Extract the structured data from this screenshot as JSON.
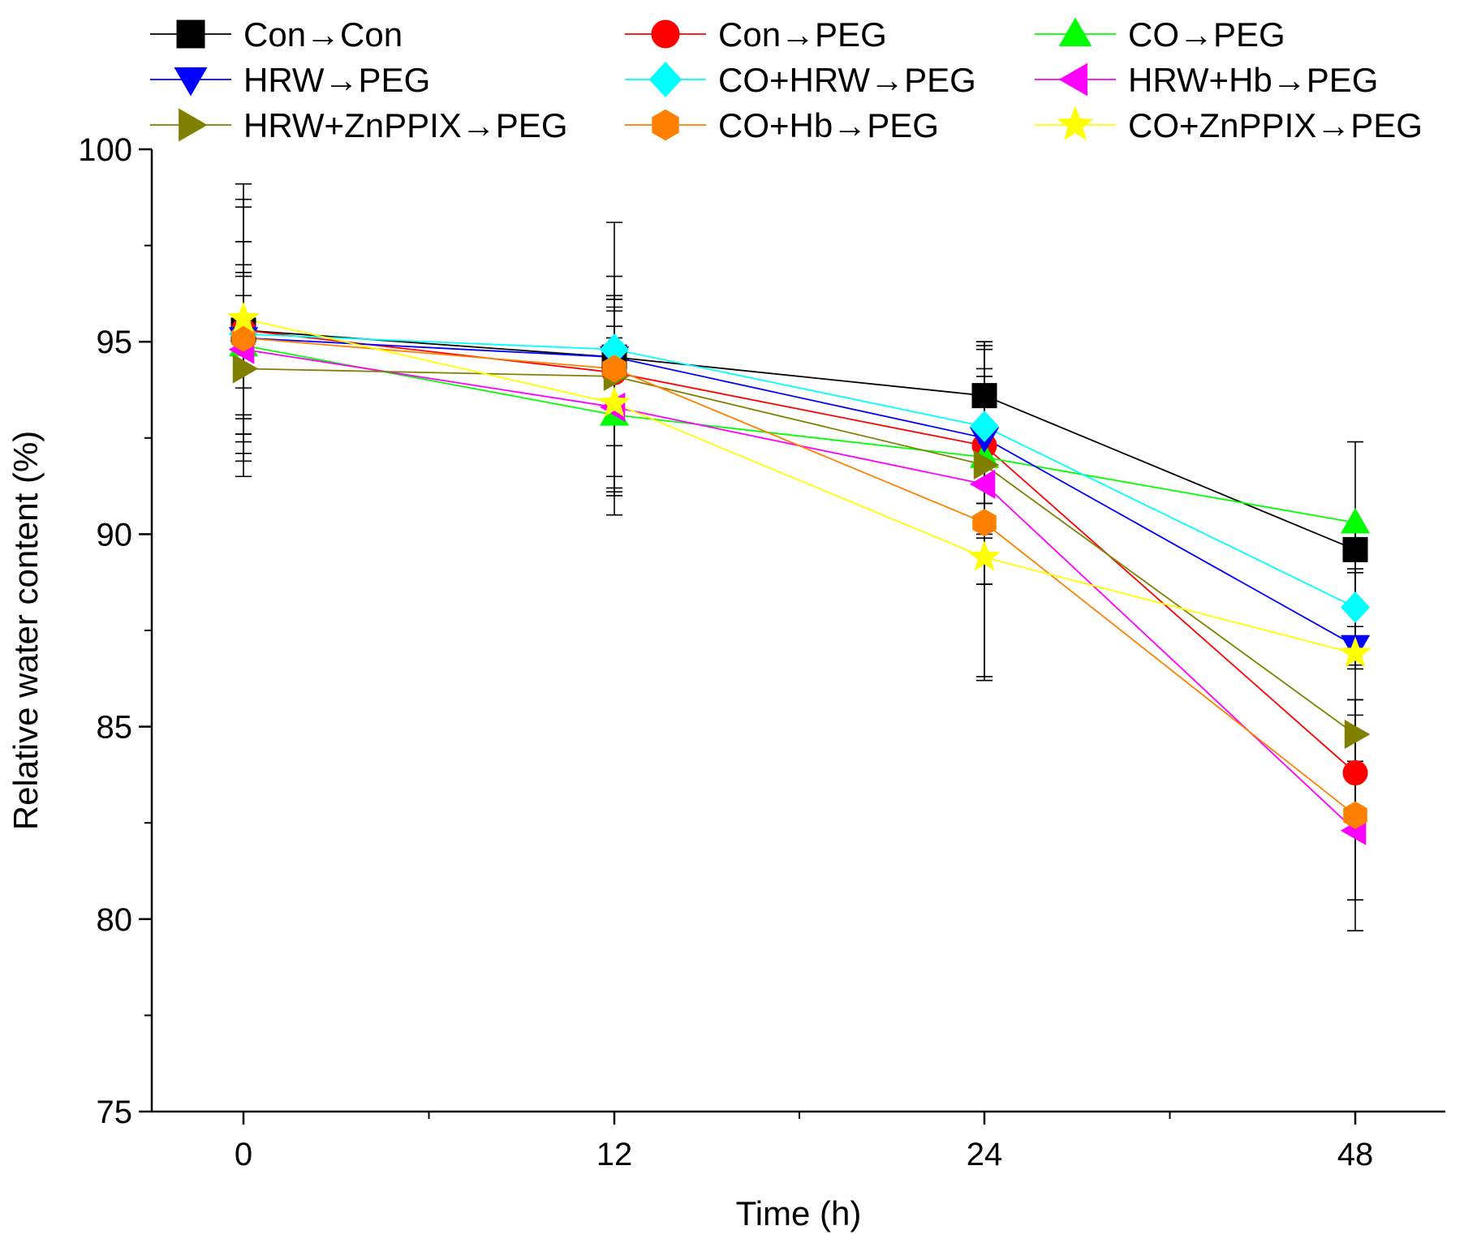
{
  "chart_data": {
    "type": "line",
    "title": "",
    "xlabel": "Time (h)",
    "ylabel": "Relative water content (%)",
    "x_categories": [
      "0",
      "12",
      "24",
      "48"
    ],
    "ylim": [
      75,
      100
    ],
    "y_ticks": [
      "75",
      "80",
      "85",
      "90",
      "95",
      "100"
    ],
    "y_tick_values": [
      75,
      80,
      85,
      90,
      95,
      100
    ],
    "grid": false,
    "legend_position": "top",
    "series": [
      {
        "name": "Con→Con",
        "color": "#000000",
        "marker": "square",
        "values": [
          95.3,
          94.6,
          93.6,
          89.6
        ],
        "errors": [
          1.5,
          1.3,
          1.4,
          0.5
        ]
      },
      {
        "name": "Con→PEG",
        "color": "#ff0000",
        "marker": "circle",
        "values": [
          95.3,
          94.2,
          92.3,
          83.8
        ],
        "errors": [
          2.3,
          1.9,
          1.5,
          1.5
        ]
      },
      {
        "name": "CO→PEG",
        "color": "#00ff00",
        "marker": "triangle-up",
        "values": [
          94.9,
          93.1,
          92.0,
          90.3
        ],
        "errors": [
          1.8,
          2.0,
          2.1,
          2.1
        ]
      },
      {
        "name": "HRW→PEG",
        "color": "#0000ff",
        "marker": "triangle-down",
        "values": [
          95.1,
          94.6,
          92.5,
          87.1
        ],
        "errors": [
          2.5,
          1.5,
          2.5,
          0.5
        ]
      },
      {
        "name": "CO+HRW→PEG",
        "color": "#00ffff",
        "marker": "diamond",
        "values": [
          95.2,
          94.8,
          92.8,
          88.1
        ],
        "errors": [
          3.3,
          1.4,
          2.0,
          1.6
        ]
      },
      {
        "name": "HRW+Hb→PEG",
        "color": "#ff00ff",
        "marker": "triangle-left",
        "values": [
          94.8,
          93.3,
          91.3,
          82.3
        ],
        "errors": [
          2.2,
          2.1,
          2.6,
          1.8
        ]
      },
      {
        "name": "HRW+ZnPPIX→PEG",
        "color": "#808000",
        "marker": "triangle-right",
        "values": [
          94.3,
          94.1,
          91.8,
          84.8
        ],
        "errors": [
          1.9,
          2.6,
          3.1,
          0.9
        ]
      },
      {
        "name": "CO+Hb→PEG",
        "color": "#ff8000",
        "marker": "hexagon",
        "values": [
          95.1,
          94.3,
          90.3,
          82.7
        ],
        "errors": [
          3.6,
          3.8,
          4.0,
          3.0
        ]
      },
      {
        "name": "CO+ZnPPIX→PEG",
        "color": "#ffff00",
        "marker": "star",
        "values": [
          95.6,
          93.4,
          89.4,
          86.9
        ],
        "errors": [
          3.5,
          2.4,
          3.2,
          2.1
        ]
      }
    ]
  }
}
